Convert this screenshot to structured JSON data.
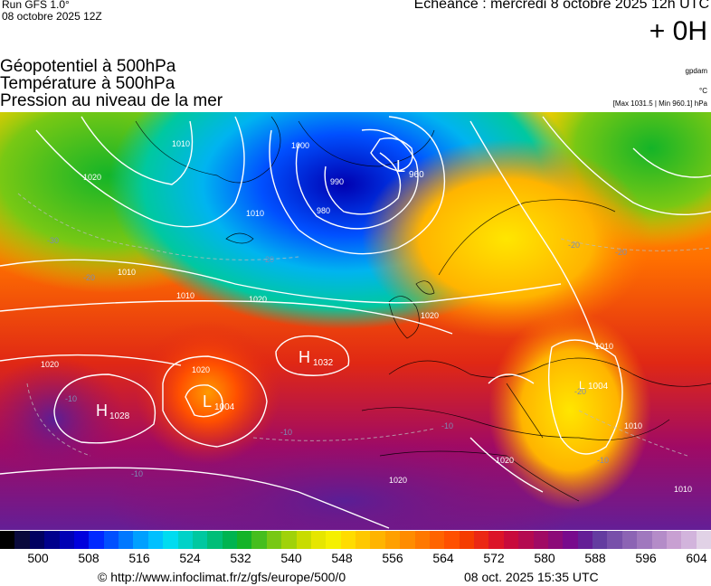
{
  "header": {
    "run": "Run GFS 1.0°",
    "run_date": "08 octobre 2025 12Z",
    "echeance": "Echéance : mercredi 8 octobre 2025 12h UTC",
    "offset": "+ 0H"
  },
  "titles": {
    "line1": "Géopotentiel à 500hPa",
    "line2": "Température à 500hPa",
    "line3": "Pression au niveau de la mer"
  },
  "units": {
    "geopotential": "gpdam",
    "temperature": "°C",
    "pressure_range": "[Max 1031.5 | Min 960.1] hPa"
  },
  "map": {
    "pressure_centers": [
      {
        "type": "L",
        "value": "960"
      },
      {
        "type": "H",
        "value": "1032"
      },
      {
        "type": "H",
        "value": "1028"
      },
      {
        "type": "L",
        "value": "1004"
      },
      {
        "type": "L",
        "value": "1004"
      }
    ],
    "isobar_labels": [
      "1010",
      "1000",
      "1020",
      "990",
      "980",
      "1010",
      "1020",
      "1010",
      "1020",
      "1020",
      "1020",
      "1010",
      "1020",
      "1020",
      "1010",
      "1010",
      "1010"
    ],
    "temperature_labels": [
      "-30",
      "-20",
      "-20",
      "-20",
      "-20",
      "-20",
      "-10",
      "-10",
      "-10",
      "-10",
      "-10"
    ]
  },
  "colorbar": {
    "colors": [
      "#000000",
      "#0a0a3c",
      "#000060",
      "#00008c",
      "#0000b4",
      "#0000dc",
      "#0028ff",
      "#0050ff",
      "#0078ff",
      "#00a0ff",
      "#00c0ff",
      "#00dcf0",
      "#00d2c8",
      "#00c8a0",
      "#00be78",
      "#00b450",
      "#14b428",
      "#46be1e",
      "#78c814",
      "#a0d20a",
      "#c8dc00",
      "#e6e600",
      "#f5f000",
      "#ffdc00",
      "#ffc800",
      "#ffb400",
      "#ffa000",
      "#ff8c00",
      "#ff7800",
      "#ff6400",
      "#ff5000",
      "#f53c00",
      "#eb2814",
      "#dc1428",
      "#c80a3c",
      "#b40a50",
      "#a00a64",
      "#8c0a78",
      "#780a8c",
      "#641e96",
      "#643ca0",
      "#7850aa",
      "#8c64b4",
      "#a078be",
      "#b48cc8",
      "#c8a0d2",
      "#d2b4dc",
      "#e1d2e6"
    ],
    "ticks": [
      "500",
      "508",
      "516",
      "524",
      "532",
      "540",
      "548",
      "556",
      "564",
      "572",
      "580",
      "588",
      "596",
      "604"
    ]
  },
  "footer": {
    "copyright": "© http://www.infoclimat.fr/z/gfs/europe/500/0",
    "generated": "08 oct. 2025 15:35 UTC"
  }
}
